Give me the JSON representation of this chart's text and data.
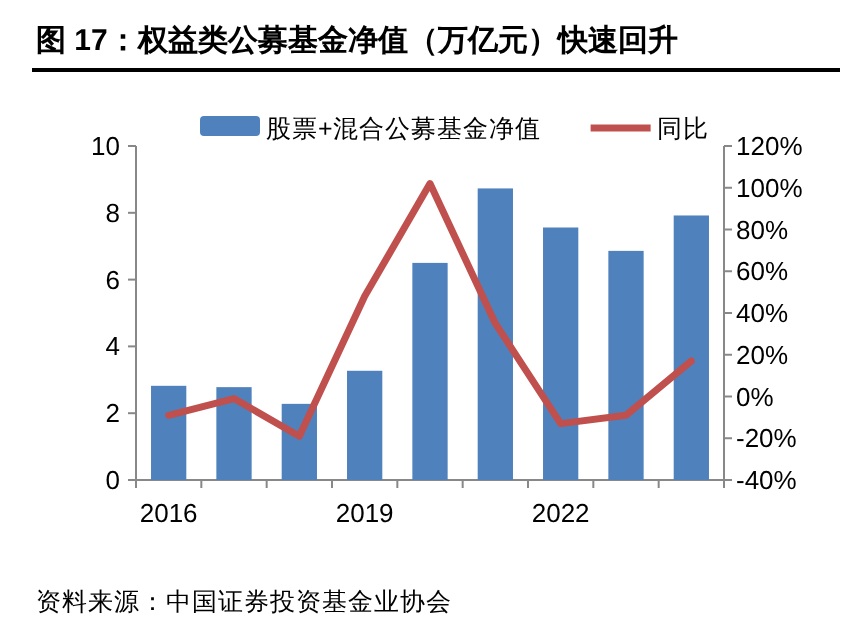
{
  "chart_data": {
    "type": "bar",
    "title": "图 17：权益类公募基金净值（万亿元）快速回升",
    "categories": [
      "2016",
      null,
      null,
      "2019",
      null,
      null,
      "2022",
      null,
      null
    ],
    "series": [
      {
        "name": "股票+混合公募基金净值",
        "color": "#4f81bd",
        "values": [
          2.82,
          2.78,
          2.28,
          3.27,
          6.5,
          8.73,
          7.56,
          6.86,
          7.92
        ]
      },
      {
        "name": "同比",
        "type": "line",
        "axis": "y2",
        "color": "#c0504d",
        "values": [
          -9,
          -1,
          -19,
          48,
          102,
          35,
          -13,
          -9,
          17
        ]
      }
    ],
    "ylim": [
      0,
      10
    ],
    "yticks": [
      0,
      2,
      4,
      6,
      8,
      10
    ],
    "y2lim": [
      -40,
      120
    ],
    "y2ticks": [
      {
        "value": -40,
        "label": "-40%"
      },
      {
        "value": -20,
        "label": "-20%"
      },
      {
        "value": 0,
        "label": "0%"
      },
      {
        "value": 20,
        "label": "20%"
      },
      {
        "value": 40,
        "label": "40%"
      },
      {
        "value": 60,
        "label": "60%"
      },
      {
        "value": 80,
        "label": "80%"
      },
      {
        "value": 100,
        "label": "100%"
      },
      {
        "value": 120,
        "label": "120%"
      }
    ],
    "legend": "top",
    "grid": false,
    "marker": "none",
    "line_style": "solid",
    "annotations": [
      "资料来源：中国证券投资基金业协会"
    ]
  }
}
